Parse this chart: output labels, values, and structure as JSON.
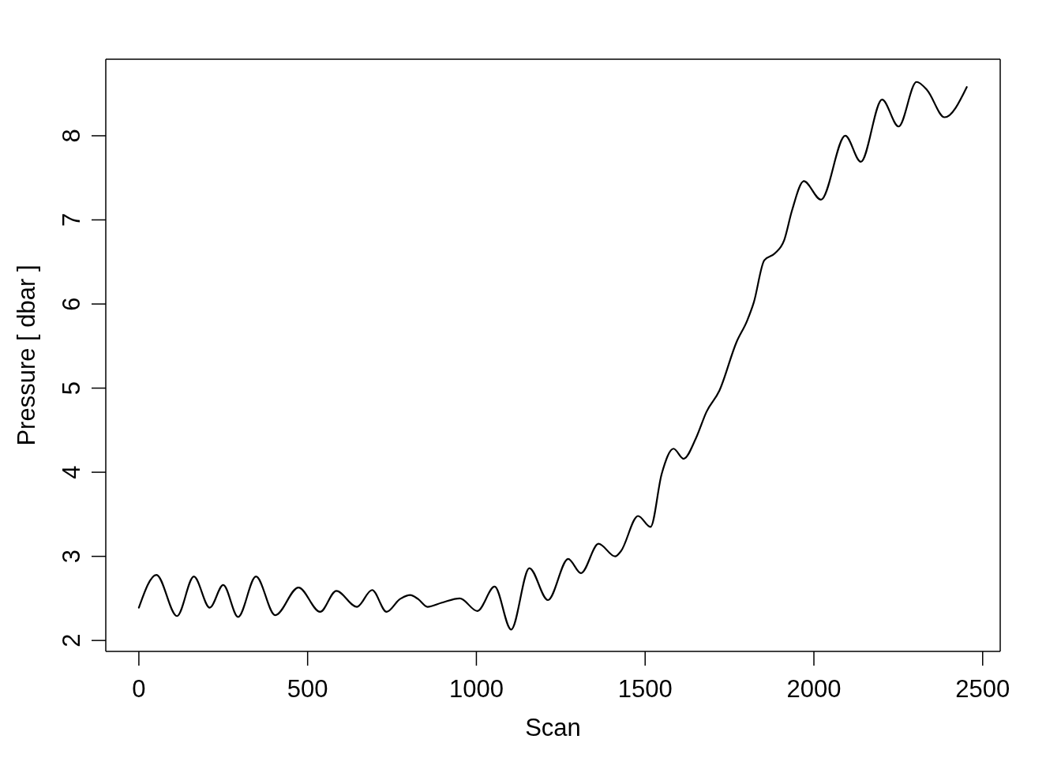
{
  "chart_data": {
    "type": "line",
    "xlabel": "Scan",
    "ylabel": "Pressure [ dbar ]",
    "x": [
      0,
      52,
      113,
      163,
      210,
      250,
      294,
      347,
      404,
      473,
      537,
      585,
      646,
      691,
      734,
      773,
      804,
      828,
      855,
      898,
      951,
      1003,
      1054,
      1103,
      1157,
      1212,
      1272,
      1310,
      1362,
      1411,
      1428,
      1479,
      1516,
      1549,
      1584,
      1614,
      1650,
      1682,
      1720,
      1771,
      1802,
      1822,
      1853,
      1884,
      1912,
      1935,
      1970,
      2021,
      2093,
      2139,
      2202,
      2251,
      2304,
      2336,
      2387,
      2453
    ],
    "series": [
      {
        "color": "#000000",
        "values": [
          2.39,
          2.78,
          2.29,
          2.76,
          2.39,
          2.66,
          2.28,
          2.76,
          2.3,
          2.63,
          2.34,
          2.59,
          2.4,
          2.6,
          2.34,
          2.49,
          2.54,
          2.49,
          2.4,
          2.45,
          2.5,
          2.35,
          2.64,
          2.13,
          2.86,
          2.48,
          2.97,
          2.8,
          3.15,
          3.0,
          3.06,
          3.48,
          3.35,
          3.98,
          4.28,
          4.16,
          4.4,
          4.72,
          4.97,
          5.55,
          5.8,
          6.02,
          6.52,
          6.6,
          6.76,
          7.11,
          7.46,
          7.24,
          8.0,
          7.69,
          8.43,
          8.11,
          8.64,
          8.54,
          8.22,
          8.58
        ]
      }
    ],
    "xlim": [
      -98,
      2552
    ],
    "ylim": [
      1.87,
      8.91
    ],
    "xticks": [
      0,
      500,
      1000,
      1500,
      2000,
      2500
    ],
    "yticks": [
      2,
      3,
      4,
      5,
      6,
      7,
      8
    ],
    "marker": "none",
    "line_style": "solid"
  }
}
